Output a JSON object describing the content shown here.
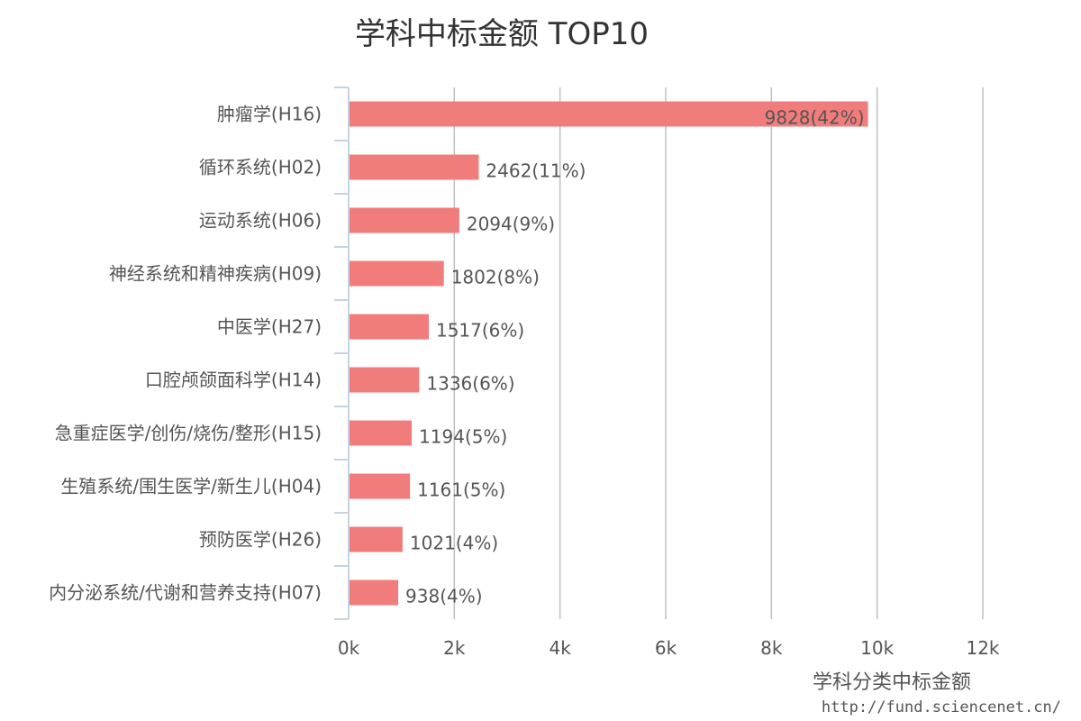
{
  "chart_data": {
    "type": "bar",
    "orientation": "horizontal",
    "title": "学科中标金额 TOP10",
    "xlabel": "学科分类中标金额",
    "ylabel": "",
    "categories": [
      "肿瘤学(H16)",
      "循环系统(H02)",
      "运动系统(H06)",
      "神经系统和精神疾病(H09)",
      "中医学(H27)",
      "口腔颅颌面科学(H14)",
      "急重症医学/创伤/烧伤/整形(H15)",
      "生殖系统/围生医学/新生儿(H04)",
      "预防医学(H26)",
      "内分泌系统/代谢和营养支持(H07)"
    ],
    "values": [
      9828,
      2462,
      2094,
      1802,
      1517,
      1336,
      1194,
      1161,
      1021,
      938
    ],
    "data_labels": [
      "9828(42%)",
      "2462(11%)",
      "2094(9%)",
      "1802(8%)",
      "1517(6%)",
      "1336(6%)",
      "1194(5%)",
      "1161(5%)",
      "1021(4%)",
      "938(4%)"
    ],
    "xlim": [
      0,
      12000
    ],
    "x_ticks": [
      0,
      2000,
      4000,
      6000,
      8000,
      10000,
      12000
    ],
    "x_tick_labels": [
      "0k",
      "2k",
      "4k",
      "6k",
      "8k",
      "10k",
      "12k"
    ],
    "grid": true,
    "bar_color": "#f07c7c",
    "grid_color": "#bfbfbf",
    "axis_color": "#c5d3e3"
  },
  "source": "http://fund.sciencenet.cn/"
}
